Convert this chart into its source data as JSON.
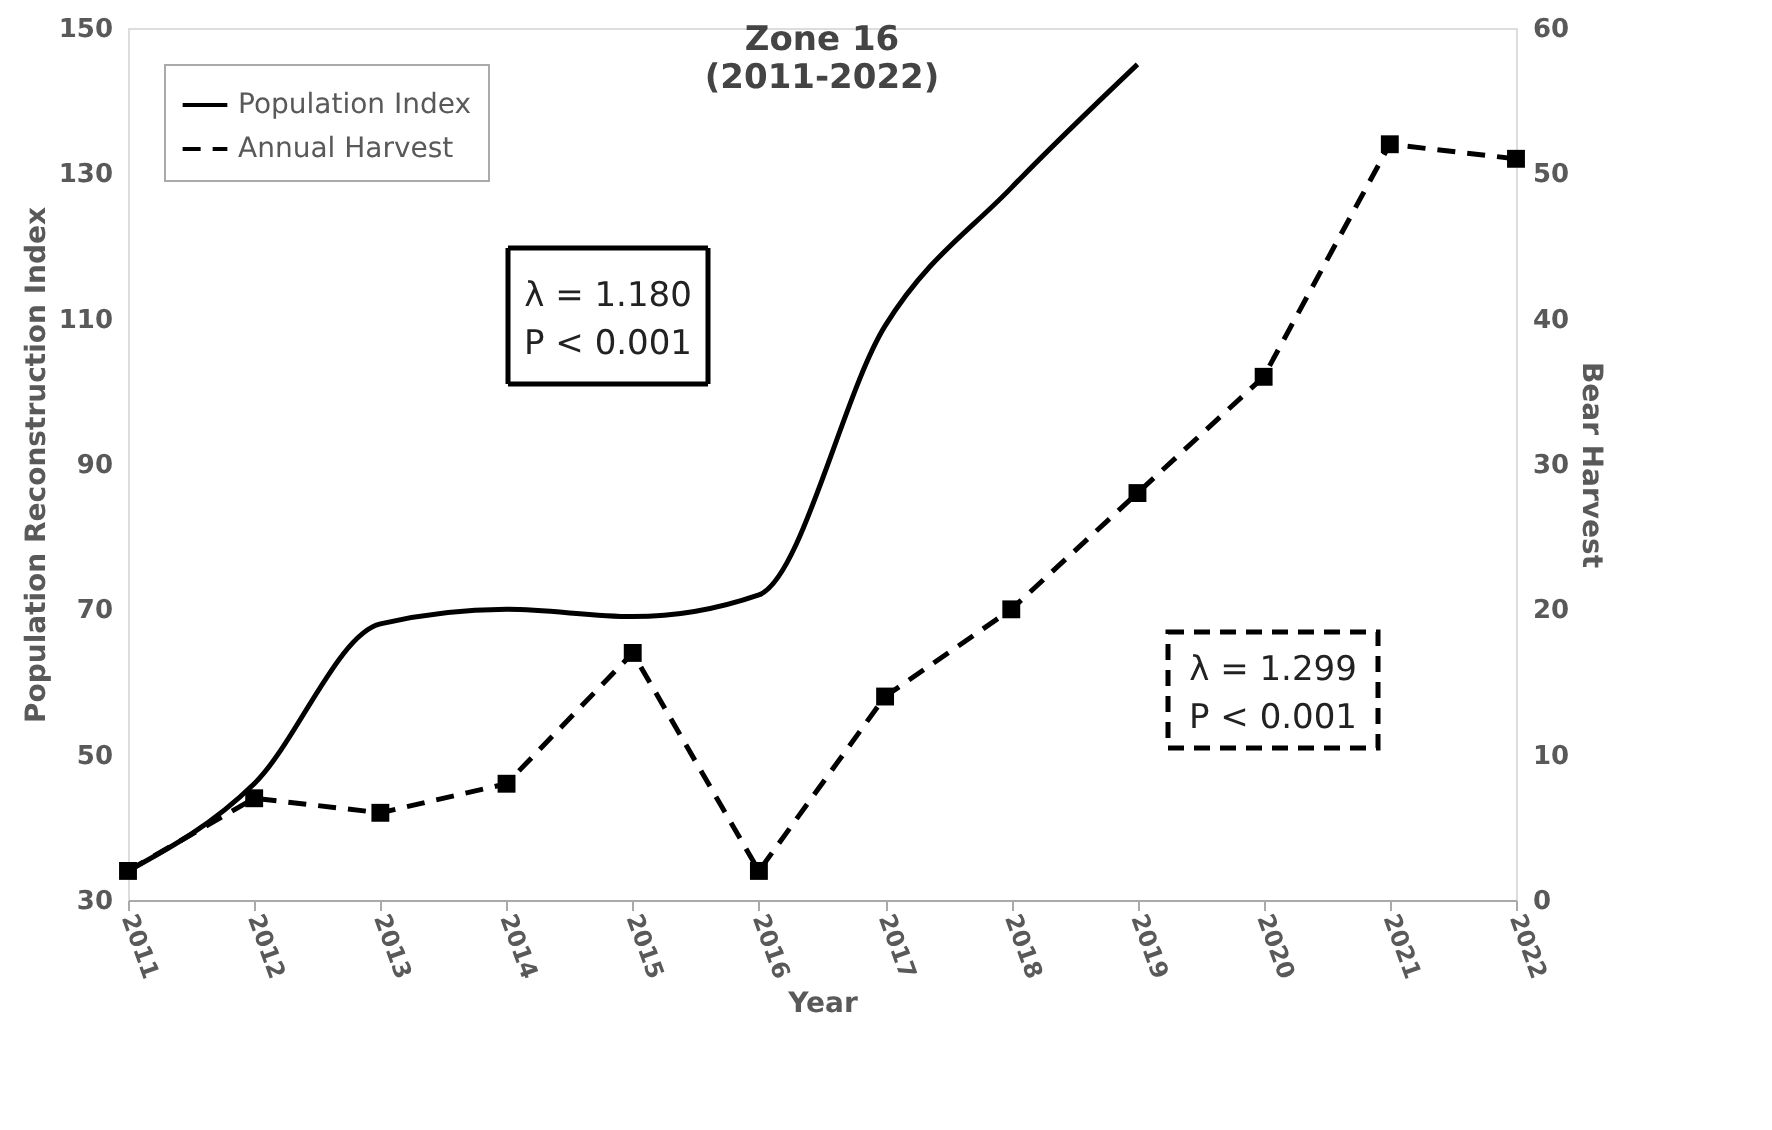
{
  "chart_data": {
    "type": "line",
    "title": "Zone 16\n(2011-2022)",
    "xlabel": "Year",
    "ylabel": "Population Reconstruction Index",
    "y2label": "Bear Harvest",
    "categories": [
      "2011",
      "2012",
      "2013",
      "2014",
      "2015",
      "2016",
      "2017",
      "2018",
      "2019",
      "2020",
      "2021",
      "2022"
    ],
    "series": [
      {
        "name": "Population Index",
        "color": "#000000",
        "line_style": "solid",
        "marker": "none",
        "values": [
          34,
          46,
          68,
          70,
          69,
          72,
          109,
          128,
          145,
          null,
          null,
          null
        ]
      },
      {
        "name": "Annual Harvest",
        "color": "#000000",
        "line_style": "dashed",
        "marker": "square",
        "axis": "y2",
        "values": [
          2,
          7,
          6,
          8,
          17,
          2,
          14,
          20,
          28,
          36,
          52,
          51
        ]
      }
    ],
    "ylim": [
      30,
      150
    ],
    "yticks": [
      30,
      50,
      70,
      90,
      110,
      130,
      150
    ],
    "y2lim": [
      0,
      60
    ],
    "y2ticks": [
      0,
      10,
      20,
      30,
      40,
      50,
      60
    ],
    "legend": "top left",
    "grid": false,
    "annotations": [
      "λ = 1.180\nP < 0.001",
      "λ = 1.299\nP < 0.001"
    ]
  }
}
